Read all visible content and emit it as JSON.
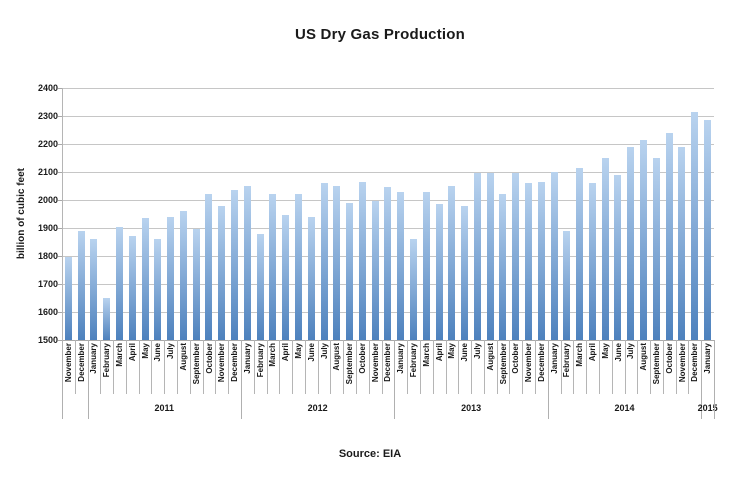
{
  "title": "US Dry Gas Production",
  "source_note": "Source: EIA",
  "chart_data": {
    "type": "bar",
    "title": "US Dry Gas Production",
    "xlabel": "",
    "ylabel": "billion of cubic feet",
    "ylim": [
      1500,
      2400
    ],
    "ytick_step": 100,
    "grid": true,
    "legend": false,
    "bar_gradient_top": "#B9D3EF",
    "bar_gradient_bottom": "#4D81BD",
    "categories": [
      "November",
      "December",
      "January",
      "February",
      "March",
      "April",
      "May",
      "June",
      "July",
      "August",
      "September",
      "October",
      "November",
      "December",
      "January",
      "February",
      "March",
      "April",
      "May",
      "June",
      "July",
      "August",
      "September",
      "October",
      "November",
      "December",
      "January",
      "February",
      "March",
      "April",
      "May",
      "June",
      "July",
      "August",
      "September",
      "October",
      "November",
      "December",
      "January",
      "February",
      "March",
      "April",
      "May",
      "June",
      "July",
      "August",
      "September",
      "October",
      "November",
      "December",
      "January"
    ],
    "values": [
      1795,
      1890,
      1860,
      1650,
      1905,
      1870,
      1935,
      1860,
      1940,
      1960,
      1895,
      2020,
      1980,
      2035,
      2050,
      1880,
      2020,
      1945,
      2020,
      1940,
      2060,
      2050,
      1990,
      2065,
      1995,
      2045,
      2030,
      1860,
      2030,
      1985,
      2050,
      1980,
      2095,
      2095,
      2020,
      2095,
      2060,
      2065,
      2100,
      1890,
      2115,
      2060,
      2150,
      2090,
      2190,
      2215,
      2150,
      2240,
      2190,
      2315,
      2285
    ],
    "year_groups": [
      {
        "label": "",
        "count": 2
      },
      {
        "label": "2011",
        "count": 12
      },
      {
        "label": "2012",
        "count": 12
      },
      {
        "label": "2013",
        "count": 12
      },
      {
        "label": "2014",
        "count": 12
      },
      {
        "label": "2015",
        "count": 1
      }
    ]
  }
}
